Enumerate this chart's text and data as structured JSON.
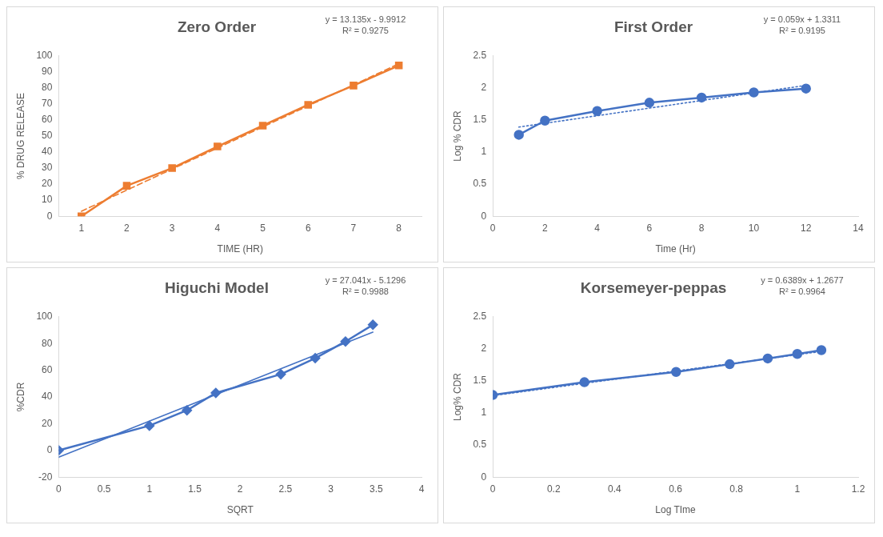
{
  "chart_data": [
    {
      "type": "line",
      "title": "Zero Order",
      "xlabel": "TIME (HR)",
      "ylabel": "% DRUG RELEASE",
      "categories": [
        "1",
        "2",
        "3",
        "4",
        "5",
        "6",
        "7",
        "8"
      ],
      "ylim": [
        0,
        100
      ],
      "yticks": [
        0,
        10,
        20,
        30,
        40,
        50,
        60,
        70,
        80,
        90,
        100
      ],
      "annotations": [
        "y = 13.135x - 9.9912",
        "R² = 0.9275"
      ],
      "series": [
        {
          "type": "line",
          "color": "#ed7d31",
          "marker": "square",
          "line_style": "solid",
          "values": [
            0,
            19,
            30,
            43.5,
            56.5,
            69.5,
            81.5,
            94
          ]
        },
        {
          "type": "line",
          "color": "#ed7d31",
          "marker": "none",
          "line_style": "dashed",
          "values": [
            3.1,
            16.3,
            29.4,
            42.5,
            55.7,
            68.8,
            81.9,
            95.1
          ]
        }
      ]
    },
    {
      "type": "line",
      "title": "First Order",
      "xlabel": "Time (Hr)",
      "ylabel": "Log % CDR",
      "xlim": [
        0,
        14
      ],
      "xticks": [
        0,
        2,
        4,
        6,
        8,
        10,
        12,
        14
      ],
      "ylim": [
        0,
        2.5
      ],
      "yticks": [
        0,
        0.5,
        1,
        1.5,
        2,
        2.5
      ],
      "annotations": [
        "y = 0.059x + 1.3311",
        "R² = 0.9195"
      ],
      "series": [
        {
          "type": "line",
          "color": "#4472c4",
          "marker": "circle",
          "line_style": "solid",
          "x": [
            1,
            2,
            4,
            6,
            8,
            10,
            12
          ],
          "values": [
            1.27,
            1.49,
            1.64,
            1.77,
            1.85,
            1.93,
            1.99
          ]
        },
        {
          "type": "line",
          "color": "#4472c4",
          "marker": "none",
          "line_style": "dotted",
          "x": [
            1,
            12
          ],
          "values": [
            1.39,
            2.04
          ]
        }
      ]
    },
    {
      "type": "line",
      "title": "Higuchi Model",
      "xlabel": "SQRT",
      "ylabel": "%CDR",
      "xlim": [
        0,
        4
      ],
      "xticks": [
        0,
        0.5,
        1,
        1.5,
        2,
        2.5,
        3,
        3.5,
        4
      ],
      "ylim": [
        -20,
        100
      ],
      "yticks": [
        -20,
        0,
        20,
        40,
        60,
        80,
        100
      ],
      "annotations": [
        "y = 27.041x - 5.1296",
        "R² = 0.9988"
      ],
      "series": [
        {
          "type": "line",
          "color": "#4472c4",
          "marker": "diamond",
          "line_style": "solid",
          "x": [
            0,
            1,
            1.414,
            1.732,
            2.449,
            2.828,
            3.162,
            3.464
          ],
          "values": [
            0,
            18.5,
            30,
            43,
            57,
            69,
            81.5,
            94
          ]
        },
        {
          "type": "line",
          "color": "#4472c4",
          "marker": "none",
          "line_style": "solid",
          "x": [
            0,
            3.464
          ],
          "values": [
            -5.1,
            88.5
          ]
        }
      ]
    },
    {
      "type": "line",
      "title": "Korsemeyer-peppas",
      "xlabel": "Log TIme",
      "ylabel": "Log% CDR",
      "xlim": [
        0,
        1.2
      ],
      "xticks": [
        0,
        0.2,
        0.4,
        0.6,
        0.8,
        1,
        1.2
      ],
      "ylim": [
        0,
        2.5
      ],
      "yticks": [
        0,
        0.5,
        1,
        1.5,
        2,
        2.5
      ],
      "annotations": [
        "y = 0.6389x + 1.2677",
        "R² = 0.9964"
      ],
      "series": [
        {
          "type": "line",
          "color": "#4472c4",
          "marker": "circle",
          "line_style": "solid",
          "x": [
            0,
            0.301,
            0.602,
            0.778,
            0.903,
            1,
            1.079
          ],
          "values": [
            1.28,
            1.48,
            1.64,
            1.76,
            1.85,
            1.92,
            1.98
          ]
        },
        {
          "type": "line",
          "color": "#4472c4",
          "marker": "none",
          "line_style": "dotted",
          "x": [
            0,
            1.079
          ],
          "values": [
            1.27,
            1.96
          ]
        }
      ]
    }
  ]
}
